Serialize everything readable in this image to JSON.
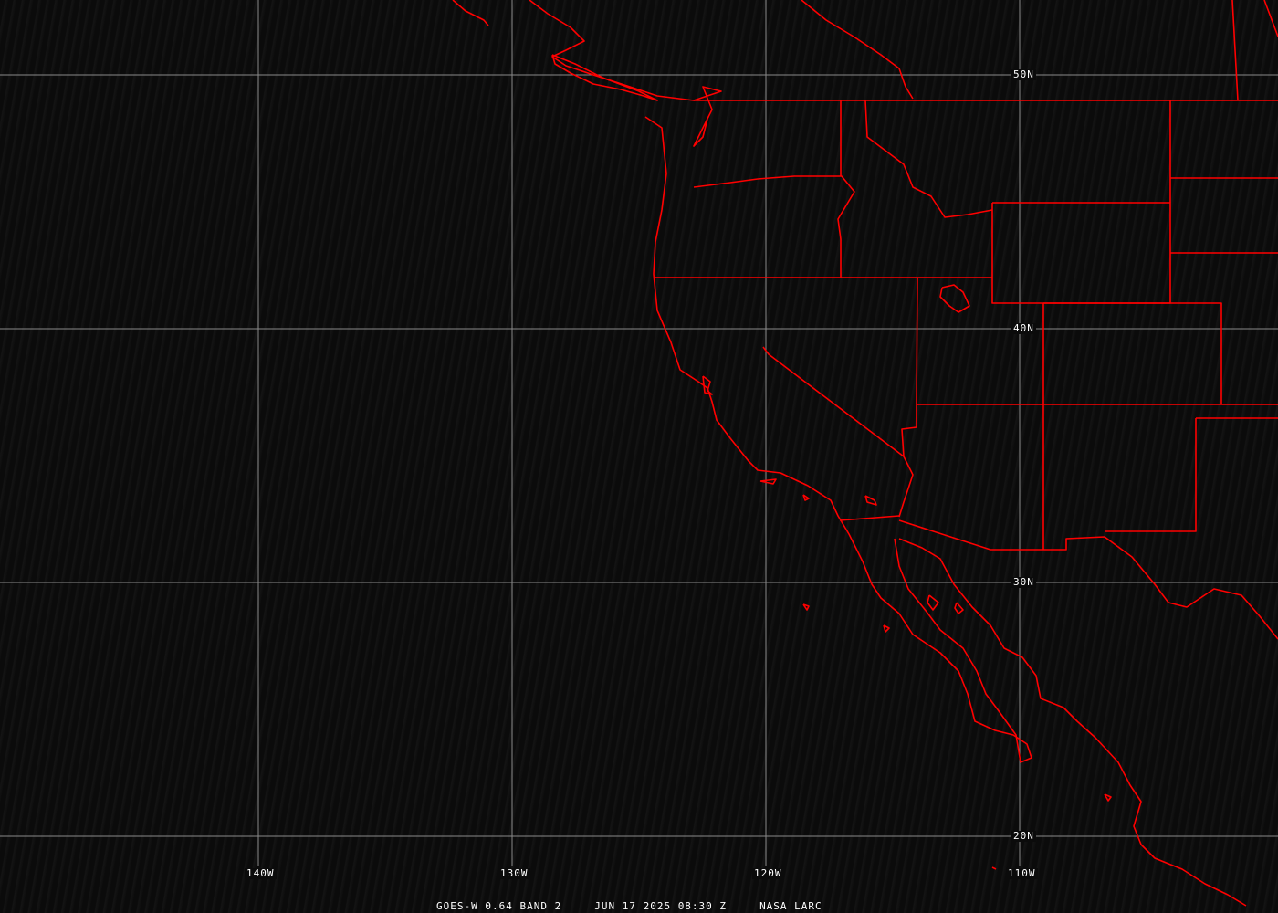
{
  "map": {
    "colors": {
      "background": "#0b0b0b",
      "grid": "#8a8a8a",
      "boundaries": "#ff0000",
      "text": "#ffffff"
    },
    "lat_labels": [
      "50N",
      "40N",
      "30N",
      "20N"
    ],
    "lon_labels": [
      "140W",
      "130W",
      "120W",
      "110W"
    ]
  },
  "caption": {
    "product": "GOES-W 0.64 BAND 2",
    "datetime": "JUN 17 2025 08:30 Z",
    "source": "NASA LARC"
  }
}
